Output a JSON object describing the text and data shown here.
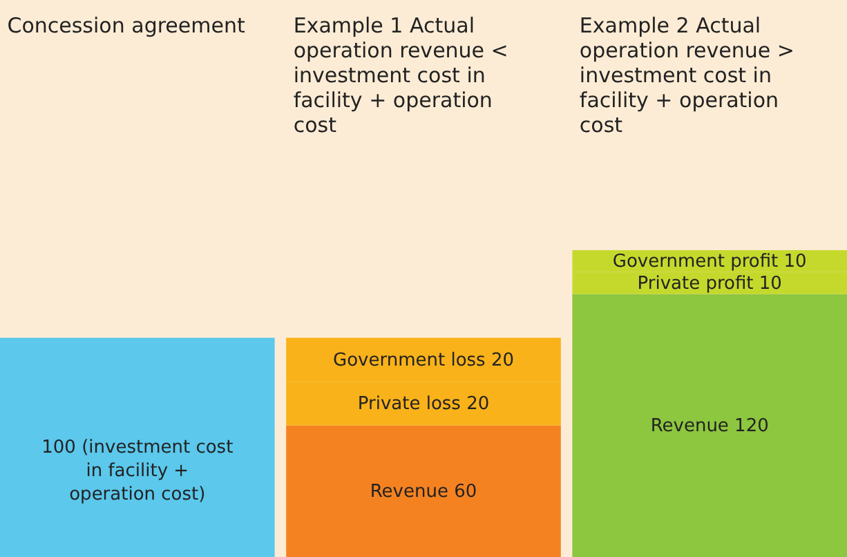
{
  "chart_data": {
    "type": "bar",
    "stacked": true,
    "categories": [
      "Concession agreement",
      "Example 1 Actual operation revenue < investment cost in facility + operation cost",
      "Example 2 Actual operation revenue > investment cost in facility + operation cost"
    ],
    "series": [
      {
        "values": [
          100,
          null,
          null
        ],
        "colors": [
          "#5bc8ec",
          null,
          null
        ],
        "value_labels": [
          "100 (investment cost in facility + operation cost)",
          null,
          null
        ]
      },
      {
        "values": [
          null,
          60,
          120
        ],
        "colors": [
          null,
          "#f58220",
          "#8dc63f"
        ],
        "value_labels": [
          null,
          "Revenue 60",
          "Revenue 120"
        ]
      },
      {
        "values": [
          null,
          20,
          10
        ],
        "colors": [
          null,
          "#f9b21a",
          "#c5d92d"
        ],
        "value_labels": [
          null,
          "Private loss 20",
          "Private profit 10"
        ]
      },
      {
        "values": [
          null,
          20,
          10
        ],
        "colors": [
          null,
          "#f9b21a",
          "#c5d92d"
        ],
        "value_labels": [
          null,
          "Government loss 20",
          "Government profit 10"
        ]
      }
    ]
  }
}
